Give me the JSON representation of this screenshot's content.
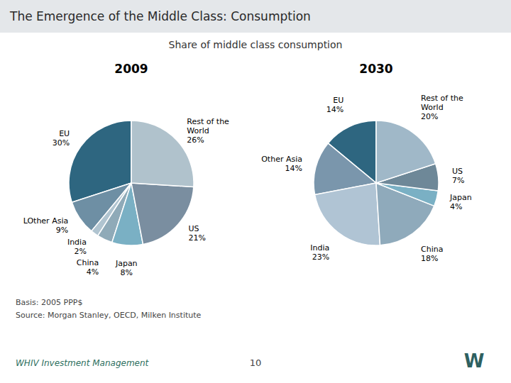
{
  "title": "The Emergence of the Middle Class: Consumption",
  "subtitle": "Share of middle class consumption",
  "chart_data": [
    {
      "type": "pie",
      "title": "2009",
      "categories": [
        "EU",
        "LOther Asia",
        "India",
        "China",
        "Japan",
        "US",
        "Rest of the\nWorld"
      ],
      "values": [
        30,
        9,
        2,
        4,
        8,
        21,
        26
      ],
      "value_labels": [
        "30%",
        "9%",
        "2%",
        "4%",
        "8%",
        "21%",
        "26%"
      ],
      "colors": [
        "#2e6680",
        "#6e8fa4",
        "#b0c4d0",
        "#8faab8",
        "#7ab0c4",
        "#7a8ea0",
        "#b0c2cc"
      ],
      "data_labels": true
    },
    {
      "type": "pie",
      "title": "2030",
      "categories": [
        "EU",
        "Other Asia",
        "India",
        "China",
        "Japan",
        "US",
        "Rest of the\nWorld"
      ],
      "values": [
        14,
        14,
        23,
        18,
        4,
        7,
        20
      ],
      "value_labels": [
        "14%",
        "14%",
        "23%",
        "18%",
        "4%",
        "7%",
        "20%"
      ],
      "colors": [
        "#2e6680",
        "#7a96ac",
        "#b0c4d4",
        "#8faabb",
        "#7ab0c4",
        "#6e8898",
        "#a0b8c8"
      ],
      "data_labels": true
    }
  ],
  "annotations": [
    "Basis: 2005 PPP$",
    "Source: Morgan Stanley, OECD, Milken Institute",
    "WHIV Investment Management",
    "10",
    "W"
  ]
}
